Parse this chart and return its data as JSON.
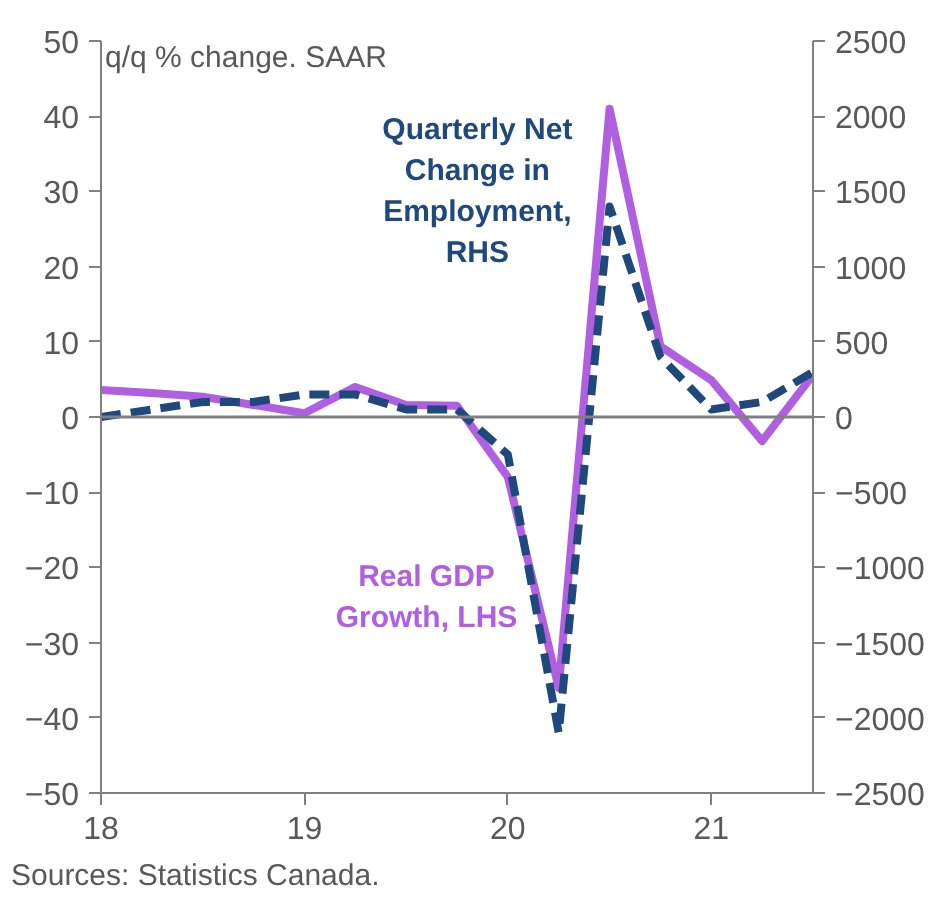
{
  "chart_data": {
    "type": "line",
    "ylabel": "q/q % change. SAAR",
    "x": [
      18.0,
      18.25,
      18.5,
      18.75,
      19.0,
      19.25,
      19.5,
      19.75,
      20.0,
      20.25,
      20.5,
      20.75,
      21.0,
      21.25,
      21.5
    ],
    "series": [
      {
        "name": "Real GDP Growth, LHS",
        "color": "#b05fe0",
        "line_style": "solid",
        "values": [
          3.6,
          3.2,
          2.7,
          1.6,
          0.5,
          4.0,
          1.6,
          1.5,
          -8.0,
          -36.0,
          41.0,
          9.4,
          4.9,
          -3.2,
          5.6
        ]
      },
      {
        "name": "Quarterly Net Change in Employment, RHS",
        "color": "#1f497d",
        "line_style": "dashed",
        "axis": "y2",
        "values": [
          0,
          50,
          100,
          100,
          150,
          150,
          50,
          50,
          -250,
          -2100,
          1400,
          400,
          50,
          100,
          300
        ]
      }
    ],
    "xlim": [
      18,
      21.5
    ],
    "xticks": [
      18,
      19,
      20,
      21
    ],
    "ylim": [
      -50,
      50
    ],
    "yticks": [
      -50,
      -40,
      -30,
      -20,
      -10,
      0,
      10,
      20,
      30,
      40,
      50
    ],
    "y2lim": [
      -2500,
      2500
    ],
    "y2ticks": [
      -2500,
      -2000,
      -1500,
      -1000,
      -500,
      0,
      500,
      1000,
      1500,
      2000,
      2500
    ],
    "ref_lines": [
      {
        "axis": "y",
        "value": 0,
        "color": "#808080"
      }
    ],
    "grid": false,
    "annotations": [
      "Sources: Statistics Canada."
    ]
  }
}
